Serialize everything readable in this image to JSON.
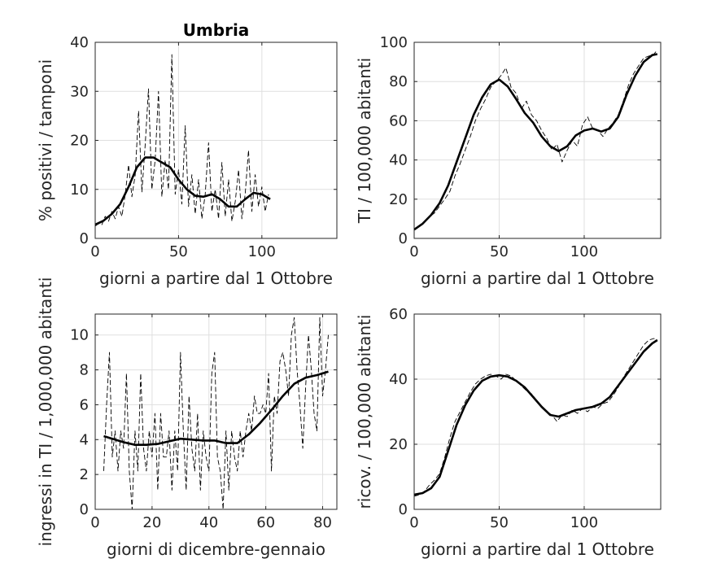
{
  "chart_data": [
    {
      "type": "line",
      "title": "Umbria",
      "xlabel": "giorni a partire dal 1 Ottobre",
      "ylabel": "% positivi / tamponi",
      "xlim": [
        0,
        145
      ],
      "ylim": [
        0,
        40
      ],
      "xticks": [
        0,
        50,
        100
      ],
      "yticks": [
        0,
        10,
        20,
        30,
        40
      ],
      "grid": true,
      "series": [
        {
          "style": "solid",
          "x": [
            0,
            5,
            10,
            15,
            20,
            25,
            30,
            35,
            40,
            45,
            50,
            55,
            60,
            65,
            70,
            75,
            80,
            85,
            90,
            95,
            100,
            105
          ],
          "y": [
            2.8,
            3.6,
            5.0,
            7.0,
            10.5,
            14.5,
            16.5,
            16.5,
            15.5,
            14.5,
            12.0,
            10.0,
            8.7,
            8.5,
            9.0,
            8.0,
            6.5,
            6.5,
            8.0,
            9.3,
            9.0,
            8.0
          ]
        },
        {
          "style": "dashed",
          "x": [
            0,
            2,
            4,
            6,
            8,
            10,
            12,
            14,
            16,
            18,
            20,
            22,
            24,
            26,
            28,
            30,
            32,
            34,
            36,
            38,
            40,
            42,
            44,
            46,
            48,
            50,
            52,
            54,
            56,
            58,
            60,
            62,
            64,
            66,
            68,
            70,
            72,
            74,
            76,
            78,
            80,
            82,
            84,
            86,
            88,
            90,
            92,
            94,
            96,
            98,
            100,
            102,
            104
          ],
          "y": [
            2.5,
            3.0,
            2.8,
            4.5,
            3.5,
            5.5,
            4.0,
            6.5,
            4.5,
            9.0,
            15.0,
            8.5,
            13.0,
            26.0,
            9.5,
            19.0,
            30.5,
            10.0,
            16.0,
            30.0,
            8.5,
            16.0,
            10.0,
            37.5,
            9.0,
            14.0,
            7.0,
            23.0,
            6.5,
            13.0,
            5.0,
            12.0,
            4.0,
            9.0,
            19.5,
            5.5,
            10.0,
            4.0,
            15.5,
            4.5,
            12.0,
            3.5,
            7.5,
            14.0,
            4.0,
            9.0,
            18.0,
            5.5,
            13.0,
            6.5,
            10.5,
            5.5,
            9.0
          ]
        }
      ]
    },
    {
      "type": "line",
      "title": "",
      "xlabel": "giorni a partire dal 1 Ottobre",
      "ylabel": "TI / 100,000 abitanti",
      "xlim": [
        0,
        145
      ],
      "ylim": [
        0,
        100
      ],
      "xticks": [
        0,
        50,
        100
      ],
      "yticks": [
        0,
        20,
        40,
        60,
        80,
        100
      ],
      "grid": true,
      "series": [
        {
          "style": "solid",
          "x": [
            0,
            5,
            10,
            15,
            20,
            25,
            30,
            35,
            40,
            45,
            50,
            55,
            60,
            65,
            70,
            75,
            80,
            85,
            90,
            95,
            100,
            105,
            110,
            115,
            120,
            125,
            130,
            135,
            140,
            143
          ],
          "y": [
            4.5,
            7.5,
            12.0,
            18.0,
            27.0,
            39.0,
            51.0,
            63.0,
            72.0,
            78.5,
            81.0,
            77.5,
            71.0,
            64.0,
            59.0,
            52.0,
            47.0,
            44.5,
            47.0,
            52.5,
            55.0,
            56.0,
            54.5,
            56.0,
            62.0,
            73.5,
            83.0,
            90.0,
            93.5,
            94.0
          ]
        },
        {
          "style": "dashed",
          "x": [
            0,
            3,
            6,
            9,
            12,
            15,
            18,
            21,
            24,
            27,
            30,
            33,
            36,
            39,
            42,
            45,
            48,
            51,
            54,
            57,
            60,
            63,
            66,
            69,
            72,
            75,
            78,
            81,
            84,
            87,
            90,
            93,
            96,
            99,
            102,
            105,
            108,
            111,
            114,
            117,
            120,
            123,
            126,
            129,
            132,
            135,
            138,
            141,
            143
          ],
          "y": [
            5.0,
            6.0,
            8.0,
            11.0,
            13.0,
            16.5,
            20.0,
            24.0,
            32.0,
            38.0,
            45.0,
            52.0,
            60.0,
            66.0,
            71.0,
            77.0,
            80.0,
            83.0,
            87.0,
            77.0,
            74.0,
            66.0,
            70.0,
            63.0,
            60.0,
            55.0,
            51.0,
            45.0,
            48.0,
            39.0,
            45.0,
            50.0,
            47.0,
            58.0,
            62.0,
            56.0,
            55.0,
            52.0,
            56.0,
            59.0,
            63.0,
            70.0,
            78.0,
            84.0,
            88.0,
            92.0,
            93.0,
            94.0,
            96.0
          ]
        }
      ]
    },
    {
      "type": "line",
      "title": "",
      "xlabel": "giorni di dicembre-gennaio",
      "ylabel": "ingressi in TI / 1,000,000 abitanti",
      "xlim": [
        0,
        85
      ],
      "ylim": [
        0,
        11.2
      ],
      "xticks": [
        0,
        20,
        40,
        60,
        80
      ],
      "yticks": [
        0,
        2,
        4,
        6,
        8,
        10
      ],
      "grid": true,
      "series": [
        {
          "style": "solid",
          "x": [
            3,
            6,
            10,
            14,
            18,
            22,
            26,
            30,
            34,
            38,
            42,
            46,
            50,
            54,
            58,
            62,
            66,
            70,
            74,
            78,
            82
          ],
          "y": [
            4.2,
            4.05,
            3.85,
            3.7,
            3.7,
            3.75,
            3.9,
            4.05,
            4.0,
            3.95,
            3.95,
            3.8,
            3.8,
            4.3,
            4.95,
            5.7,
            6.5,
            7.2,
            7.55,
            7.7,
            7.9
          ]
        },
        {
          "style": "dashed",
          "x": [
            3,
            4,
            5,
            6,
            7,
            8,
            9,
            10,
            11,
            12,
            13,
            14,
            15,
            16,
            17,
            18,
            19,
            20,
            21,
            22,
            23,
            24,
            25,
            26,
            27,
            28,
            29,
            30,
            31,
            32,
            33,
            34,
            35,
            36,
            37,
            38,
            39,
            40,
            41,
            42,
            43,
            44,
            45,
            46,
            47,
            48,
            49,
            50,
            51,
            52,
            53,
            54,
            55,
            56,
            57,
            58,
            59,
            60,
            61,
            62,
            63,
            64,
            65,
            66,
            67,
            68,
            69,
            70,
            71,
            72,
            73,
            74,
            75,
            76,
            77,
            78,
            79,
            80,
            81,
            82
          ],
          "y": [
            2.2,
            6.0,
            9.0,
            3.0,
            4.5,
            2.2,
            4.5,
            3.5,
            7.8,
            2.2,
            0.0,
            4.5,
            2.2,
            7.8,
            3.5,
            2.2,
            4.5,
            3.0,
            5.5,
            1.1,
            5.5,
            3.0,
            3.0,
            4.5,
            1.1,
            4.5,
            2.2,
            9.0,
            4.5,
            1.1,
            6.5,
            3.5,
            2.2,
            5.5,
            1.1,
            4.5,
            3.0,
            2.2,
            7.8,
            9.0,
            3.0,
            2.2,
            0.0,
            4.5,
            1.1,
            4.5,
            3.0,
            2.2,
            4.5,
            3.0,
            4.5,
            5.5,
            4.5,
            6.5,
            5.5,
            5.5,
            6.0,
            5.5,
            7.8,
            2.2,
            6.5,
            5.5,
            8.5,
            9.0,
            8.0,
            6.5,
            10.0,
            11.0,
            8.0,
            6.0,
            3.5,
            7.0,
            10.0,
            8.0,
            5.5,
            4.5,
            11.0,
            6.5,
            8.0,
            10.0
          ]
        }
      ]
    },
    {
      "type": "line",
      "title": "",
      "xlabel": "giorni a partire dal 1 Ottobre",
      "ylabel": "ricov. / 100,000 abitanti",
      "xlim": [
        0,
        145
      ],
      "ylim": [
        0,
        60
      ],
      "xticks": [
        0,
        50,
        100
      ],
      "yticks": [
        0,
        20,
        40,
        60
      ],
      "grid": true,
      "series": [
        {
          "style": "solid",
          "x": [
            0,
            5,
            10,
            15,
            20,
            25,
            30,
            35,
            40,
            45,
            50,
            55,
            60,
            65,
            70,
            75,
            80,
            85,
            90,
            95,
            100,
            105,
            110,
            115,
            120,
            125,
            130,
            135,
            140,
            143
          ],
          "y": [
            4.5,
            5.0,
            6.5,
            10.0,
            18.0,
            26.0,
            32.0,
            36.5,
            39.5,
            40.8,
            41.2,
            40.8,
            39.5,
            37.5,
            34.5,
            31.5,
            29.0,
            28.5,
            29.5,
            30.5,
            31.0,
            31.5,
            32.5,
            34.5,
            38.0,
            41.5,
            45.0,
            48.5,
            51.0,
            52.0
          ]
        },
        {
          "style": "dashed",
          "x": [
            0,
            3,
            6,
            9,
            12,
            15,
            18,
            21,
            24,
            27,
            30,
            33,
            36,
            39,
            42,
            45,
            48,
            51,
            54,
            57,
            60,
            63,
            66,
            69,
            72,
            75,
            78,
            81,
            84,
            87,
            90,
            93,
            96,
            99,
            102,
            105,
            108,
            111,
            114,
            117,
            120,
            123,
            126,
            129,
            132,
            135,
            138,
            141,
            143
          ],
          "y": [
            4.0,
            4.5,
            5.5,
            7.5,
            9.0,
            11.0,
            16.0,
            22.0,
            27.0,
            30.0,
            33.0,
            36.0,
            38.5,
            40.0,
            41.0,
            41.5,
            41.0,
            40.0,
            41.5,
            41.0,
            39.5,
            38.0,
            36.5,
            35.5,
            33.5,
            31.5,
            30.0,
            29.0,
            27.0,
            29.0,
            28.5,
            30.5,
            29.5,
            31.0,
            30.0,
            31.5,
            31.0,
            32.5,
            33.0,
            35.0,
            37.5,
            40.5,
            43.0,
            45.5,
            48.0,
            50.5,
            52.0,
            52.5,
            52.0
          ]
        }
      ]
    }
  ]
}
